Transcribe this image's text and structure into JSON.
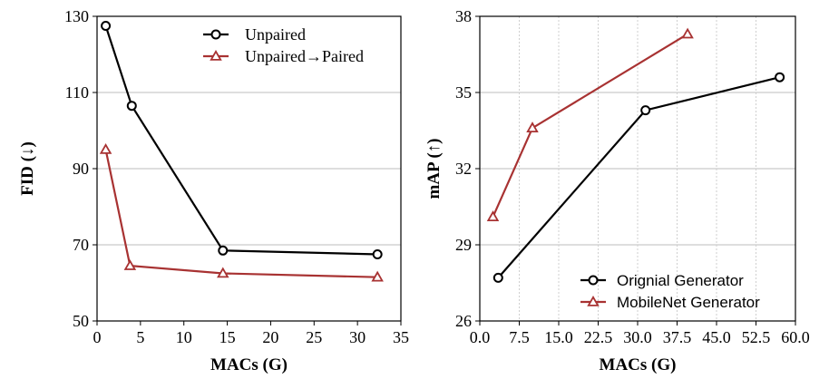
{
  "chart_data": [
    {
      "type": "line",
      "title": "",
      "xlabel": "MACs (G)",
      "ylabel": "FID (↓)",
      "xlim": [
        0,
        35
      ],
      "ylim": [
        50,
        130
      ],
      "xticks": [
        "0",
        "5",
        "10",
        "15",
        "20",
        "25",
        "30",
        "35"
      ],
      "yticks": [
        "50",
        "70",
        "90",
        "110",
        "130"
      ],
      "grid": "horizontal",
      "legend_position": "top-right",
      "series": [
        {
          "name": "Unpaired",
          "color": "#000000",
          "marker": "circle",
          "x": [
            1.0,
            4.0,
            14.5,
            32.3
          ],
          "y": [
            127.5,
            106.5,
            68.5,
            67.5
          ]
        },
        {
          "name": "Unpaired→Paired",
          "color": "#a83232",
          "marker": "triangle",
          "x": [
            1.0,
            3.8,
            14.5,
            32.3
          ],
          "y": [
            95.0,
            64.5,
            62.5,
            61.5
          ]
        }
      ]
    },
    {
      "type": "line",
      "title": "",
      "xlabel": "MACs (G)",
      "ylabel": "mAP (↑)",
      "xlim": [
        0,
        60
      ],
      "ylim": [
        26,
        38
      ],
      "xticks": [
        "0.0",
        "7.5",
        "15.0",
        "22.5",
        "30.0",
        "37.5",
        "45.0",
        "52.5",
        "60.0"
      ],
      "yticks": [
        "26",
        "29",
        "32",
        "35",
        "38"
      ],
      "grid": "both",
      "legend_position": "bottom-right",
      "series": [
        {
          "name": "Orignial Generator",
          "color": "#000000",
          "marker": "circle",
          "x": [
            3.5,
            31.5,
            57.0
          ],
          "y": [
            27.7,
            34.3,
            35.6
          ]
        },
        {
          "name": "MobileNet Generator",
          "color": "#a83232",
          "marker": "triangle",
          "x": [
            2.5,
            10.0,
            39.5
          ],
          "y": [
            30.1,
            33.6,
            37.3
          ]
        }
      ]
    }
  ]
}
